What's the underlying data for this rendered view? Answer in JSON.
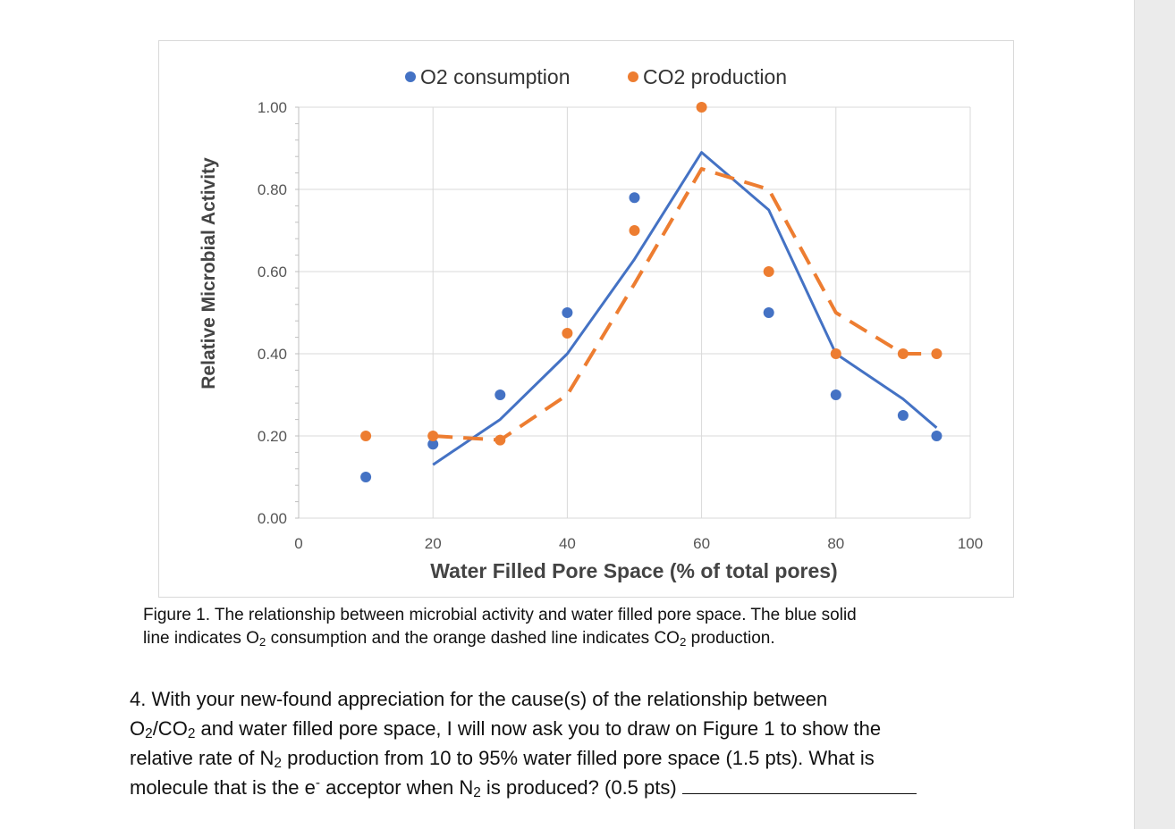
{
  "chart_data": {
    "type": "scatter",
    "title": "",
    "xlabel": "Water Filled Pore Space (% of total pores)",
    "ylabel": "Relative Microbial Activity",
    "xlim": [
      0,
      100
    ],
    "ylim": [
      0,
      1.0
    ],
    "x_ticks": [
      "0",
      "20",
      "40",
      "60",
      "80",
      "100"
    ],
    "y_ticks": [
      "0.00",
      "0.20",
      "0.40",
      "0.60",
      "0.80",
      "1.00"
    ],
    "grid": true,
    "legend_position": "top",
    "series": [
      {
        "name": "O2 consumption",
        "color": "#4472c4",
        "marker": "circle",
        "points": [
          [
            10,
            0.1
          ],
          [
            20,
            0.18
          ],
          [
            30,
            0.3
          ],
          [
            40,
            0.5
          ],
          [
            50,
            0.78
          ],
          [
            70,
            0.5
          ],
          [
            80,
            0.3
          ],
          [
            90,
            0.25
          ],
          [
            95,
            0.2
          ]
        ],
        "trendline": {
          "style": "solid",
          "points": [
            [
              20,
              0.13
            ],
            [
              30,
              0.24
            ],
            [
              40,
              0.4
            ],
            [
              50,
              0.63
            ],
            [
              60,
              0.89
            ],
            [
              70,
              0.75
            ],
            [
              80,
              0.4
            ],
            [
              90,
              0.29
            ],
            [
              95,
              0.22
            ]
          ]
        }
      },
      {
        "name": "CO2 production",
        "color": "#ed7d31",
        "marker": "circle",
        "points": [
          [
            10,
            0.2
          ],
          [
            20,
            0.2
          ],
          [
            30,
            0.19
          ],
          [
            40,
            0.45
          ],
          [
            50,
            0.7
          ],
          [
            60,
            1.0
          ],
          [
            70,
            0.6
          ],
          [
            80,
            0.4
          ],
          [
            90,
            0.4
          ],
          [
            95,
            0.4
          ]
        ],
        "trendline": {
          "style": "dashed",
          "points": [
            [
              20,
              0.2
            ],
            [
              30,
              0.19
            ],
            [
              40,
              0.3
            ],
            [
              50,
              0.57
            ],
            [
              60,
              0.85
            ],
            [
              70,
              0.8
            ],
            [
              80,
              0.5
            ],
            [
              90,
              0.4
            ],
            [
              95,
              0.4
            ]
          ]
        }
      }
    ]
  },
  "caption": {
    "line1": "Figure 1. The relationship between microbial activity and water filled pore space. The blue solid",
    "line2_a": "line indicates O",
    "line2_sub1": "2",
    "line2_b": " consumption and the orange dashed line indicates CO",
    "line2_sub2": "2",
    "line2_c": " production."
  },
  "question": {
    "p1": "4. With your new-found appreciation for the cause(s) of the relationship between",
    "p2_a": "O",
    "p2_sub1": "2",
    "p2_b": "/CO",
    "p2_sub2": "2",
    "p2_c": " and water filled pore space, I will now ask you to draw on Figure 1 to show the",
    "p3_a": "relative rate of N",
    "p3_sub": "2",
    "p3_b": " production from 10 to 95% water filled pore space (1.5 pts). What is",
    "p4_a": "molecule that is the e",
    "p4_sup": "-",
    "p4_b": " acceptor when N",
    "p4_sub": "2",
    "p4_c": " is produced? (0.5 pts)"
  }
}
